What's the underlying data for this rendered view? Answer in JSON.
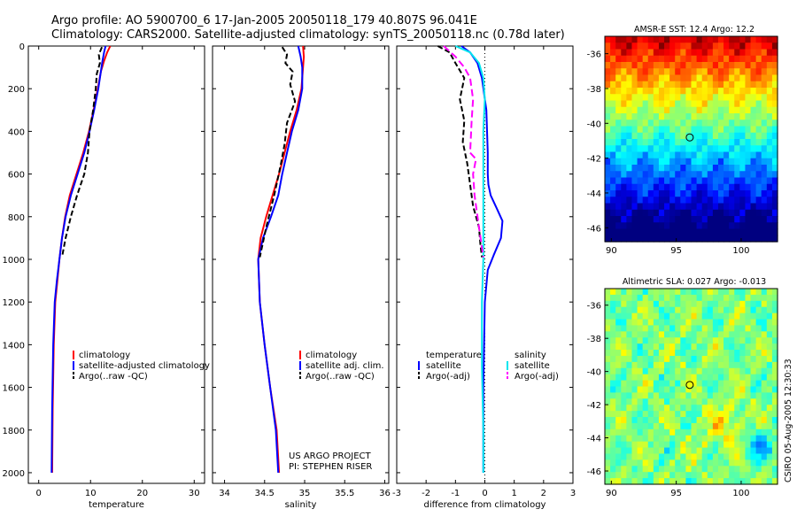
{
  "title": {
    "line1": "Argo profile: AO 5900700_6 17-Jan-2005 20050118_179 40.807S 96.041E",
    "line2": "Climatology: CARS2000. Satellite-adjusted climatology: synTS_20050118.nc (0.78d later)"
  },
  "colors": {
    "climatology": "#ff0000",
    "satellite": "#0000ff",
    "argo": "#000000",
    "sal_satellite": "#00e5ee",
    "sal_argo": "#ff00ff"
  },
  "chart_data": [
    {
      "type": "line",
      "name": "temperature-profile",
      "xlabel": "temperature",
      "ylabel": "",
      "xlim": [
        -2,
        32
      ],
      "ylim": [
        2050,
        0
      ],
      "xticks": [
        0,
        10,
        20,
        30
      ],
      "yticks": [
        0,
        200,
        400,
        600,
        800,
        1000,
        1200,
        1400,
        1600,
        1800,
        2000
      ],
      "legend": [
        "climatology",
        "satellite-adjusted climatology",
        "Argo(..raw -QC)"
      ],
      "series": [
        {
          "name": "climatology",
          "color": "#ff0000",
          "dash": "",
          "x": [
            13.8,
            13.2,
            12.6,
            12.0,
            11.4,
            10.6,
            9.7,
            8.6,
            7.3,
            6.0,
            5.1,
            4.5,
            4.0,
            3.6,
            3.2,
            2.9,
            2.7,
            2.6
          ],
          "y": [
            0,
            30,
            70,
            120,
            200,
            300,
            400,
            500,
            600,
            700,
            800,
            900,
            1000,
            1100,
            1200,
            1400,
            1700,
            2000
          ]
        },
        {
          "name": "satellite-adjusted climatology",
          "color": "#0000ff",
          "dash": "",
          "x": [
            12.9,
            12.6,
            12.3,
            12.0,
            11.5,
            10.7,
            9.8,
            8.8,
            7.5,
            6.2,
            5.2,
            4.5,
            4.0,
            3.5,
            3.1,
            2.8,
            2.6,
            2.5
          ],
          "y": [
            0,
            30,
            70,
            120,
            200,
            300,
            400,
            500,
            600,
            700,
            800,
            900,
            1000,
            1100,
            1200,
            1400,
            1700,
            2000
          ]
        },
        {
          "name": "Argo(..raw -QC)",
          "color": "#000000",
          "dash": "6,3",
          "x": [
            12.2,
            11.6,
            11.8,
            11.2,
            11.0,
            10.5,
            9.8,
            9.5,
            8.8,
            7.4,
            6.2,
            5.2,
            4.5
          ],
          "y": [
            5,
            40,
            80,
            130,
            200,
            300,
            400,
            500,
            600,
            700,
            800,
            900,
            990
          ]
        }
      ]
    },
    {
      "type": "line",
      "name": "salinity-profile",
      "xlabel": "salinity",
      "ylabel": "",
      "xlim": [
        33.85,
        36.05
      ],
      "ylim": [
        2050,
        0
      ],
      "xticks": [
        34,
        34.5,
        35,
        35.5,
        36
      ],
      "yticks": [],
      "legend": [
        "climatology",
        "satellite adj. clim.",
        "Argo(..raw -QC)"
      ],
      "series": [
        {
          "name": "climatology",
          "color": "#ff0000",
          "dash": "",
          "x": [
            34.98,
            34.99,
            34.98,
            34.96,
            34.9,
            34.82,
            34.75,
            34.68,
            34.6,
            34.52,
            34.45,
            34.42,
            34.44,
            34.5,
            34.57,
            34.65,
            34.68
          ],
          "y": [
            0,
            50,
            100,
            200,
            300,
            400,
            500,
            600,
            700,
            800,
            900,
            1000,
            1200,
            1400,
            1600,
            1800,
            2000
          ]
        },
        {
          "name": "satellite adj. clim.",
          "color": "#0000ff",
          "dash": "",
          "x": [
            34.92,
            34.95,
            34.97,
            34.97,
            34.92,
            34.84,
            34.78,
            34.72,
            34.67,
            34.58,
            34.48,
            34.42,
            34.44,
            34.5,
            34.57,
            34.64,
            34.67
          ],
          "y": [
            0,
            50,
            100,
            200,
            300,
            400,
            500,
            600,
            700,
            800,
            900,
            1000,
            1200,
            1400,
            1600,
            1800,
            2000
          ]
        },
        {
          "name": "Argo(..raw -QC)",
          "color": "#000000",
          "dash": "6,3",
          "x": [
            34.72,
            34.78,
            34.76,
            34.85,
            34.82,
            34.88,
            34.78,
            34.75,
            34.7,
            34.62,
            34.52,
            34.44
          ],
          "y": [
            5,
            40,
            80,
            120,
            180,
            260,
            360,
            460,
            560,
            700,
            850,
            990
          ]
        }
      ],
      "annotation": [
        "US ARGO PROJECT",
        "PI: STEPHEN RISER"
      ]
    },
    {
      "type": "line",
      "name": "difference-profile",
      "xlabel": "difference from climatology",
      "ylabel": "",
      "xlim": [
        -3,
        3
      ],
      "ylim": [
        2050,
        0
      ],
      "xticks": [
        -3,
        -2,
        -1,
        0,
        1,
        2,
        3
      ],
      "yticks": [],
      "legend_temperature": [
        "temperature",
        "satellite",
        "Argo(-adj)"
      ],
      "legend_salinity": [
        "salinity",
        "satellite",
        "Argo(-adj)"
      ],
      "series": [
        {
          "name": "temperature satellite",
          "color": "#0000ff",
          "dash": "",
          "x": [
            -0.8,
            -0.5,
            -0.25,
            -0.1,
            0.05,
            0.1,
            0.1,
            0.12,
            0.2,
            0.4,
            0.6,
            0.55,
            0.3,
            0.1,
            0.0,
            -0.05,
            -0.05
          ],
          "y": [
            0,
            30,
            80,
            150,
            300,
            500,
            600,
            650,
            700,
            760,
            820,
            900,
            980,
            1050,
            1200,
            1600,
            2000
          ]
        },
        {
          "name": "temperature Argo(-adj)",
          "color": "#000000",
          "dash": "6,3",
          "x": [
            -1.6,
            -1.2,
            -1.0,
            -0.7,
            -0.85,
            -0.7,
            -0.75,
            -0.6,
            -0.5,
            -0.4,
            -0.2,
            -0.15,
            -0.1
          ],
          "y": [
            0,
            30,
            80,
            150,
            250,
            350,
            450,
            550,
            650,
            750,
            850,
            930,
            990
          ]
        },
        {
          "name": "salinity satellite",
          "color": "#00e5ee",
          "dash": "",
          "x": [
            -1.0,
            -0.5,
            -0.2,
            -0.05,
            0.0,
            -0.05,
            -0.05,
            -0.05,
            -0.05,
            -0.1,
            -0.1,
            -0.05,
            -0.05
          ],
          "y": [
            0,
            30,
            80,
            150,
            250,
            400,
            600,
            800,
            1000,
            1200,
            1500,
            1800,
            2000
          ]
        },
        {
          "name": "salinity Argo(-adj)",
          "color": "#ff00ff",
          "dash": "8,4",
          "x": [
            -1.4,
            -1.0,
            -0.7,
            -0.5,
            -0.4,
            -0.45,
            -0.5,
            -0.3,
            -0.4,
            -0.35,
            -0.2,
            -0.05
          ],
          "y": [
            0,
            50,
            100,
            150,
            250,
            350,
            500,
            530,
            600,
            700,
            850,
            990
          ]
        }
      ]
    },
    {
      "type": "heatmap",
      "name": "sst-map",
      "title": "AMSR-E SST: 12.4 Argo: 12.2",
      "xlim": [
        89.5,
        102.8
      ],
      "ylim": [
        -46.8,
        -35.0
      ],
      "xticks": [
        90,
        95,
        100
      ],
      "yticks": [
        -36,
        -38,
        -40,
        -42,
        -44,
        -46
      ],
      "marker": {
        "lon": 96.04,
        "lat": -40.81
      }
    },
    {
      "type": "heatmap",
      "name": "sla-map",
      "title": "Altimetric SLA: 0.027 Argo: -0.013",
      "xlim": [
        89.5,
        102.8
      ],
      "ylim": [
        -46.8,
        -35.0
      ],
      "xticks": [
        90,
        95,
        100
      ],
      "yticks": [
        -36,
        -38,
        -40,
        -42,
        -44,
        -46
      ],
      "marker": {
        "lon": 96.04,
        "lat": -40.81
      }
    }
  ],
  "side_label": "CSIRO 05-Aug-2005 12:30:33"
}
